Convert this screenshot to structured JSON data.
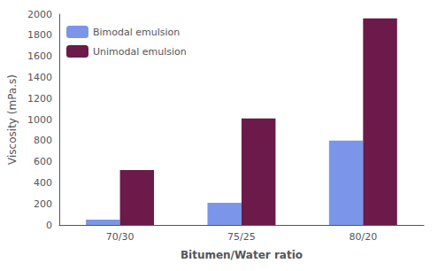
{
  "chart_data": {
    "type": "bar",
    "categories": [
      "70/30",
      "75/25",
      "80/20"
    ],
    "series": [
      {
        "name": "Bimodal emulsion",
        "color": "#7b96e8",
        "values": [
          50,
          210,
          800
        ]
      },
      {
        "name": "Unimodal emulsion",
        "color": "#6b1a4a",
        "values": [
          520,
          1010,
          1960
        ]
      }
    ],
    "xlabel": "Bitumen/Water ratio",
    "ylabel": "Viscosity (mPa.s)",
    "ylim": [
      0,
      2000
    ],
    "yticks": [
      0,
      200,
      400,
      600,
      800,
      1000,
      1200,
      1400,
      1600,
      1800,
      2000
    ],
    "grid": false,
    "legend": "upper left"
  }
}
